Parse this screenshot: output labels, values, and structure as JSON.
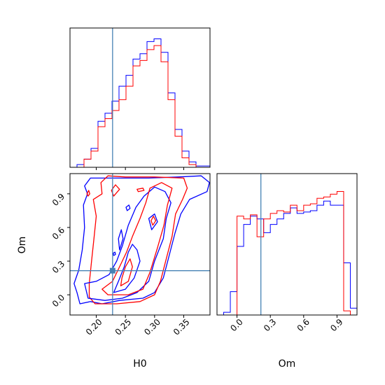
{
  "chart_data": {
    "type": "corner",
    "truth": {
      "H0": 0.228,
      "Om": 0.215
    },
    "truth_color": "#4682b4",
    "series": [
      {
        "color": "#0000ff"
      },
      {
        "color": "#ff0000"
      }
    ],
    "panels": [
      {
        "id": "hist-h0",
        "type": "histogram",
        "xlim": [
          0.155,
          0.395
        ],
        "ylim": [
          0,
          1.03
        ],
        "xticks": [
          0.2,
          0.25,
          0.3,
          0.35
        ],
        "bin_edges": [
          0.155,
          0.167,
          0.179,
          0.191,
          0.203,
          0.215,
          0.227,
          0.239,
          0.251,
          0.263,
          0.275,
          0.287,
          0.299,
          0.311,
          0.323,
          0.335,
          0.347,
          0.359,
          0.371,
          0.383,
          0.395
        ],
        "blue": [
          0.0,
          0.02,
          0.06,
          0.14,
          0.34,
          0.4,
          0.49,
          0.6,
          0.68,
          0.8,
          0.84,
          0.93,
          0.95,
          0.85,
          0.55,
          0.28,
          0.12,
          0.04,
          0.01,
          0.01
        ],
        "red": [
          0.0,
          0.0,
          0.06,
          0.12,
          0.3,
          0.36,
          0.42,
          0.5,
          0.6,
          0.75,
          0.79,
          0.87,
          0.9,
          0.78,
          0.5,
          0.23,
          0.07,
          0.02,
          0.0,
          0.0
        ]
      },
      {
        "id": "hist-om",
        "type": "histogram",
        "xlim": [
          -0.18,
          1.08
        ],
        "ylim": [
          0,
          1.03
        ],
        "xticks": [
          0.0,
          0.3,
          0.6,
          0.9
        ],
        "xtick_labels": [
          "0.0",
          "0.3",
          "0.6",
          "0.9"
        ],
        "bin_edges": [
          -0.18,
          -0.12,
          -0.06,
          0.0,
          0.06,
          0.12,
          0.18,
          0.24,
          0.3,
          0.36,
          0.42,
          0.48,
          0.54,
          0.6,
          0.66,
          0.72,
          0.78,
          0.84,
          0.9,
          0.96,
          1.02,
          1.08
        ],
        "blue": [
          0.0,
          0.02,
          0.17,
          0.5,
          0.66,
          0.72,
          0.7,
          0.6,
          0.66,
          0.7,
          0.74,
          0.78,
          0.74,
          0.75,
          0.76,
          0.8,
          0.83,
          0.8,
          0.8,
          0.38,
          0.05
        ],
        "red": [
          0.0,
          0.0,
          0.0,
          0.72,
          0.7,
          0.73,
          0.57,
          0.7,
          0.74,
          0.76,
          0.75,
          0.8,
          0.76,
          0.8,
          0.81,
          0.85,
          0.86,
          0.88,
          0.9,
          0.03,
          0.0
        ]
      },
      {
        "id": "contour-h0-om",
        "type": "contour",
        "xlim": [
          0.155,
          0.395
        ],
        "ylim": [
          -0.18,
          1.08
        ],
        "xticks": [
          0.2,
          0.25,
          0.3,
          0.35
        ],
        "xtick_labels": [
          "0.20",
          "0.25",
          "0.30",
          "0.35"
        ],
        "yticks": [
          0.0,
          0.3,
          0.6,
          0.9
        ],
        "ytick_labels": [
          "0.0",
          "0.3",
          "0.6",
          "0.9"
        ],
        "xlabel": "H0",
        "ylabel": "Om",
        "contours": [
          {
            "color": "#0000ff",
            "points": [
              [
                0.167,
                0.02
              ],
              [
                0.172,
                -0.08
              ],
              [
                0.19,
                -0.06
              ],
              [
                0.21,
                -0.08
              ],
              [
                0.24,
                -0.05
              ],
              [
                0.28,
                -0.03
              ],
              [
                0.3,
                0.02
              ],
              [
                0.315,
                0.15
              ],
              [
                0.325,
                0.35
              ],
              [
                0.335,
                0.55
              ],
              [
                0.345,
                0.72
              ],
              [
                0.36,
                0.85
              ],
              [
                0.39,
                0.92
              ],
              [
                0.394,
                1.0
              ],
              [
                0.38,
                1.06
              ],
              [
                0.34,
                1.05
              ],
              [
                0.29,
                1.04
              ],
              [
                0.24,
                1.04
              ],
              [
                0.19,
                1.04
              ],
              [
                0.18,
                0.97
              ],
              [
                0.185,
                0.9
              ],
              [
                0.178,
                0.8
              ],
              [
                0.18,
                0.6
              ],
              [
                0.176,
                0.4
              ],
              [
                0.17,
                0.22
              ],
              [
                0.162,
                0.1
              ],
              [
                0.167,
                0.02
              ]
            ]
          },
          {
            "color": "#ff0000",
            "points": [
              [
                0.188,
                -0.02
              ],
              [
                0.198,
                -0.08
              ],
              [
                0.235,
                -0.08
              ],
              [
                0.275,
                -0.06
              ],
              [
                0.3,
                0.0
              ],
              [
                0.31,
                0.12
              ],
              [
                0.32,
                0.32
              ],
              [
                0.33,
                0.52
              ],
              [
                0.336,
                0.72
              ],
              [
                0.348,
                0.85
              ],
              [
                0.356,
                0.95
              ],
              [
                0.35,
                1.04
              ],
              [
                0.3,
                1.05
              ],
              [
                0.25,
                1.05
              ],
              [
                0.22,
                1.06
              ],
              [
                0.208,
                1.0
              ],
              [
                0.21,
                0.9
              ],
              [
                0.195,
                0.85
              ],
              [
                0.2,
                0.7
              ],
              [
                0.196,
                0.5
              ],
              [
                0.192,
                0.3
              ],
              [
                0.188,
                0.1
              ],
              [
                0.188,
                -0.02
              ]
            ]
          },
          {
            "color": "#0000ff",
            "points": [
              [
                0.18,
                0.1
              ],
              [
                0.186,
                -0.03
              ],
              [
                0.215,
                -0.05
              ],
              [
                0.245,
                -0.03
              ],
              [
                0.27,
                0.02
              ],
              [
                0.29,
                0.12
              ],
              [
                0.3,
                0.3
              ],
              [
                0.315,
                0.5
              ],
              [
                0.32,
                0.68
              ],
              [
                0.328,
                0.82
              ],
              [
                0.318,
                0.92
              ],
              [
                0.3,
                0.96
              ],
              [
                0.282,
                0.88
              ],
              [
                0.268,
                0.78
              ],
              [
                0.255,
                0.62
              ],
              [
                0.245,
                0.44
              ],
              [
                0.235,
                0.3
              ],
              [
                0.222,
                0.18
              ],
              [
                0.2,
                0.12
              ],
              [
                0.18,
                0.1
              ]
            ]
          },
          {
            "color": "#ff0000",
            "points": [
              [
                0.21,
                0.05
              ],
              [
                0.22,
                0.0
              ],
              [
                0.255,
                0.0
              ],
              [
                0.28,
                0.05
              ],
              [
                0.292,
                0.2
              ],
              [
                0.305,
                0.42
              ],
              [
                0.316,
                0.62
              ],
              [
                0.322,
                0.8
              ],
              [
                0.33,
                0.95
              ],
              [
                0.312,
                1.0
              ],
              [
                0.292,
                0.95
              ],
              [
                0.285,
                0.82
              ],
              [
                0.275,
                0.68
              ],
              [
                0.262,
                0.52
              ],
              [
                0.252,
                0.38
              ],
              [
                0.24,
                0.25
              ],
              [
                0.228,
                0.12
              ],
              [
                0.21,
                0.05
              ]
            ]
          },
          {
            "color": "#0000ff",
            "points": [
              [
                0.23,
                0.02
              ],
              [
                0.25,
                0.05
              ],
              [
                0.265,
                0.15
              ],
              [
                0.275,
                0.3
              ],
              [
                0.27,
                0.4
              ],
              [
                0.262,
                0.45
              ],
              [
                0.255,
                0.38
              ],
              [
                0.248,
                0.25
              ],
              [
                0.238,
                0.12
              ],
              [
                0.23,
                0.02
              ]
            ]
          },
          {
            "color": "#ff0000",
            "points": [
              [
                0.242,
                0.08
              ],
              [
                0.255,
                0.12
              ],
              [
                0.262,
                0.25
              ],
              [
                0.258,
                0.32
              ],
              [
                0.25,
                0.25
              ],
              [
                0.244,
                0.15
              ],
              [
                0.242,
                0.08
              ]
            ]
          },
          {
            "color": "#0000ff",
            "points": [
              [
                0.295,
                0.58
              ],
              [
                0.305,
                0.65
              ],
              [
                0.3,
                0.72
              ],
              [
                0.29,
                0.68
              ],
              [
                0.295,
                0.58
              ]
            ]
          },
          {
            "color": "#ff0000",
            "points": [
              [
                0.297,
                0.62
              ],
              [
                0.302,
                0.66
              ],
              [
                0.298,
                0.7
              ],
              [
                0.294,
                0.66
              ],
              [
                0.297,
                0.62
              ]
            ]
          },
          {
            "color": "#0000ff",
            "points": [
              [
                0.24,
                0.4
              ],
              [
                0.246,
                0.5
              ],
              [
                0.243,
                0.58
              ],
              [
                0.238,
                0.5
              ],
              [
                0.24,
                0.4
              ]
            ]
          },
          {
            "color": "#ff0000",
            "points": [
              [
                0.23,
                0.88
              ],
              [
                0.24,
                0.94
              ],
              [
                0.233,
                0.98
              ],
              [
                0.226,
                0.93
              ],
              [
                0.23,
                0.88
              ]
            ]
          },
          {
            "color": "#0000ff",
            "points": [
              [
                0.253,
                0.75
              ],
              [
                0.258,
                0.77
              ],
              [
                0.256,
                0.8
              ],
              [
                0.251,
                0.78
              ],
              [
                0.253,
                0.75
              ]
            ]
          },
          {
            "color": "#ff0000",
            "points": [
              [
                0.272,
                0.92
              ],
              [
                0.282,
                0.93
              ],
              [
                0.28,
                0.95
              ],
              [
                0.27,
                0.94
              ],
              [
                0.272,
                0.92
              ]
            ]
          },
          {
            "color": "#ff0000",
            "points": [
              [
                0.186,
                0.88
              ],
              [
                0.189,
                0.9
              ],
              [
                0.187,
                0.93
              ],
              [
                0.184,
                0.9
              ],
              [
                0.186,
                0.88
              ]
            ]
          },
          {
            "color": "#0000ff",
            "points": [
              [
                0.23,
                0.35
              ],
              [
                0.233,
                0.36
              ],
              [
                0.232,
                0.38
              ],
              [
                0.229,
                0.37
              ],
              [
                0.23,
                0.35
              ]
            ]
          }
        ]
      }
    ]
  }
}
